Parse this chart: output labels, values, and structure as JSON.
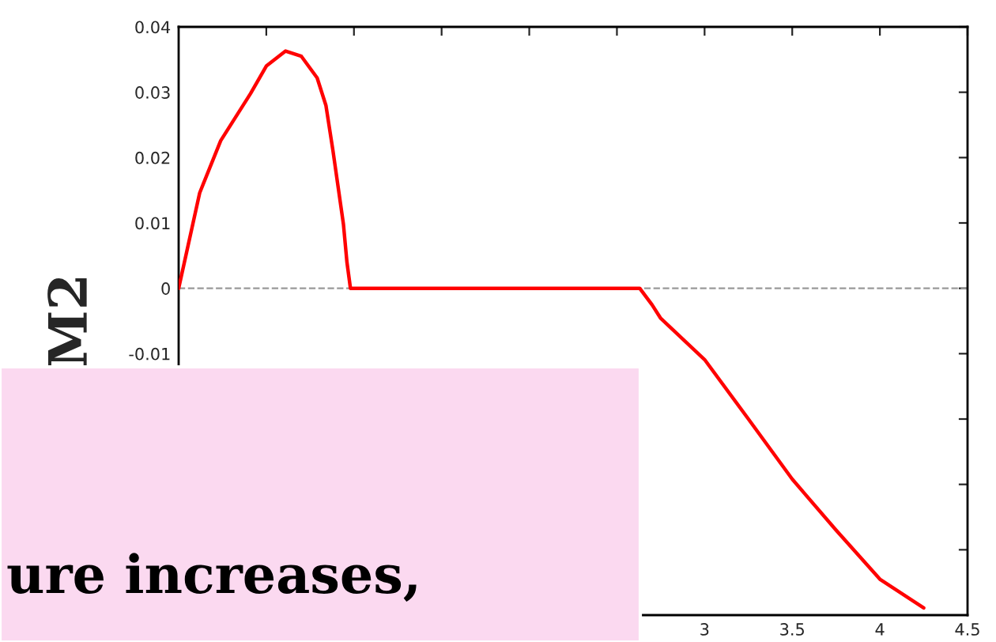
{
  "chart_data": {
    "type": "line",
    "ylabel": "M2",
    "x": [
      0,
      0.12,
      0.24,
      0.41,
      0.5,
      0.61,
      0.7,
      0.79,
      0.84,
      0.88,
      0.94,
      0.96,
      0.98,
      1.5,
      2.0,
      2.63,
      2.7,
      2.75,
      3.0,
      3.25,
      3.5,
      3.75,
      4.0,
      4.25
    ],
    "series": [
      {
        "color": "#ff0000",
        "values": [
          0,
          0.0146,
          0.0226,
          0.0298,
          0.034,
          0.0363,
          0.0355,
          0.0322,
          0.028,
          0.0211,
          0.0098,
          0.004,
          0,
          0,
          0,
          0,
          -0.0025,
          -0.0046,
          -0.0109,
          -0.02,
          -0.0292,
          -0.037,
          -0.0445,
          -0.0489
        ]
      }
    ],
    "xlim": [
      0,
      4.5
    ],
    "xticks": [
      {
        "value": 0.5,
        "label": null
      },
      {
        "value": 1,
        "label": null
      },
      {
        "value": 1.5,
        "label": null
      },
      {
        "value": 2,
        "label": null
      },
      {
        "value": 2.5,
        "label": null
      },
      3,
      3.5,
      4,
      4.5
    ],
    "ylim": [
      -0.05,
      0.04
    ],
    "yticks": [
      0.04,
      0.03,
      0.02,
      0.01,
      0,
      -0.01,
      {
        "value": -0.02,
        "label": null
      },
      {
        "value": -0.03,
        "label": null
      },
      {
        "value": -0.04,
        "label": null
      }
    ],
    "ref_lines": [
      {
        "axis": "y",
        "value": 0,
        "color": "#999999",
        "line_style": "dashed"
      }
    ],
    "grid": false,
    "legend": false,
    "marker": "none",
    "line_style": "solid",
    "annotations": [
      "ure increases,"
    ]
  }
}
